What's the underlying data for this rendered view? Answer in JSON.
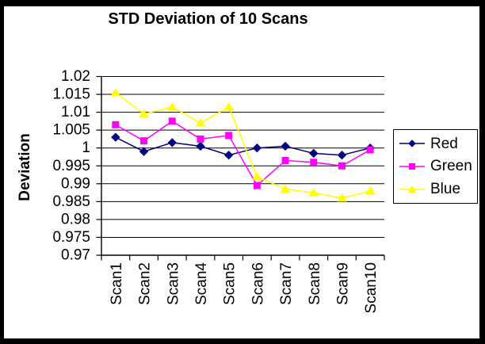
{
  "chart_data": {
    "type": "line",
    "title": "STD Deviation of 10 Scans",
    "ylabel": "Deviation",
    "xlabel": "",
    "categories": [
      "Scan1",
      "Scan2",
      "Scan3",
      "Scan4",
      "Scan5",
      "Scan6",
      "Scan7",
      "Scan8",
      "Scan9",
      "Scan10"
    ],
    "ylim": [
      0.97,
      1.02
    ],
    "ytick_step": 0.005,
    "yticks": [
      "1.02",
      "1.015",
      "1.01",
      "1.005",
      "1",
      "0.995",
      "0.99",
      "0.985",
      "0.98",
      "0.975",
      "0.97"
    ],
    "grid": "horizontal",
    "legend_position": "right",
    "series": [
      {
        "name": "Red",
        "color": "#000080",
        "marker": "diamond",
        "values": [
          1.003,
          0.999,
          1.0015,
          1.0005,
          0.998,
          1.0,
          1.0005,
          0.9985,
          0.998,
          1.0
        ]
      },
      {
        "name": "Green",
        "color": "#FF00FF",
        "marker": "square",
        "values": [
          1.0065,
          1.002,
          1.0075,
          1.0025,
          1.0035,
          0.9895,
          0.9965,
          0.996,
          0.995,
          0.9995
        ]
      },
      {
        "name": "Blue",
        "color": "#FFFF00",
        "marker": "triangle",
        "values": [
          1.0155,
          1.0095,
          1.0115,
          1.007,
          1.0115,
          0.992,
          0.9885,
          0.9875,
          0.986,
          0.988
        ]
      }
    ],
    "axis_color": "#000000",
    "grid_color": "#000000",
    "background": "#ffffff"
  }
}
